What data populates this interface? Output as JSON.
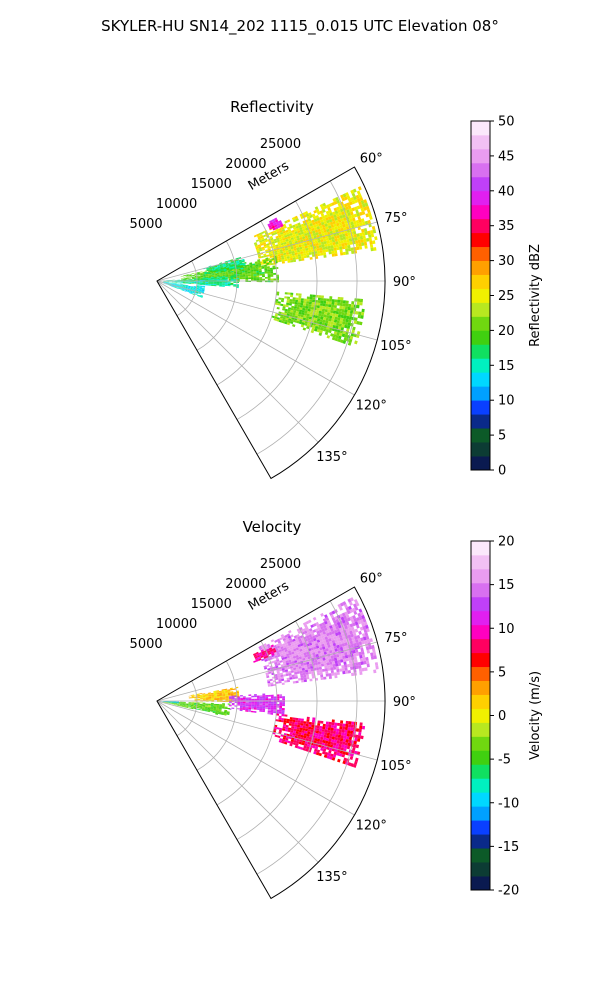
{
  "figure": {
    "title": "SKYLER-HU  SN14_202  1115_0.015 UTC Elevation 08°"
  },
  "chart_data": [
    {
      "type": "heatmap",
      "subtype": "polar-sector",
      "title": "Reflectivity",
      "radial_axis_label": "Meters",
      "radial_ticks": [
        5000,
        10000,
        15000,
        20000,
        25000
      ],
      "radial_tick_labels": [
        "5000",
        "10000",
        "15000",
        "20000",
        "25000"
      ],
      "radial_range": [
        0,
        28500
      ],
      "angular_range_deg": [
        60,
        150
      ],
      "angular_ticks_deg": [
        60,
        75,
        90,
        105,
        120,
        135
      ],
      "angular_tick_labels": [
        "60°",
        "75°",
        "90°",
        "105°",
        "120°",
        "135°"
      ],
      "grid": true,
      "colorbar": {
        "label": "Reflectivity dBZ",
        "range": [
          0,
          50
        ],
        "ticks": [
          0,
          5,
          10,
          15,
          20,
          25,
          30,
          35,
          40,
          45,
          50
        ],
        "tick_labels": [
          "0",
          "5",
          "10",
          "15",
          "20",
          "25",
          "30",
          "35",
          "40",
          "45",
          "50"
        ],
        "colors": [
          "#0a1a50",
          "#0c3c34",
          "#0c5a28",
          "#0a2a8a",
          "#0a40ff",
          "#00a0ff",
          "#00d8ff",
          "#00f0c0",
          "#10e060",
          "#40d010",
          "#70d810",
          "#b8e820",
          "#f0f000",
          "#ffd000",
          "#ffa000",
          "#ff6000",
          "#ff0000",
          "#ff0060",
          "#ff00c0",
          "#e020f0",
          "#c040f8",
          "#d870f0",
          "#ea9cf0",
          "#f2c0f4",
          "#fbe8fb"
        ]
      },
      "echo_regions": [
        {
          "az": [
            65,
            82
          ],
          "r": [
            13000,
            28000
          ],
          "value": 25
        },
        {
          "az": [
            62,
            66
          ],
          "r": [
            15500,
            17000
          ],
          "value": 38
        },
        {
          "az": [
            78,
            90
          ],
          "r": [
            3000,
            15000
          ],
          "value": 20
        },
        {
          "az": [
            74,
            82
          ],
          "r": [
            6000,
            11000
          ],
          "value": 17
        },
        {
          "az": [
            86,
            95
          ],
          "r": [
            800,
            10000
          ],
          "value": 16
        },
        {
          "az": [
            95,
            108
          ],
          "r": [
            15000,
            26000
          ],
          "value": 21
        },
        {
          "az": [
            96,
            110
          ],
          "r": [
            800,
            6000
          ],
          "value": 14
        }
      ]
    },
    {
      "type": "heatmap",
      "subtype": "polar-sector",
      "title": "Velocity",
      "radial_axis_label": "Meters",
      "radial_ticks": [
        5000,
        10000,
        15000,
        20000,
        25000
      ],
      "radial_tick_labels": [
        "5000",
        "10000",
        "15000",
        "20000",
        "25000"
      ],
      "radial_range": [
        0,
        28500
      ],
      "angular_range_deg": [
        60,
        150
      ],
      "angular_ticks_deg": [
        60,
        75,
        90,
        105,
        120,
        135
      ],
      "angular_tick_labels": [
        "60°",
        "75°",
        "90°",
        "105°",
        "120°",
        "135°"
      ],
      "grid": true,
      "colorbar": {
        "label": "Velocity (m/s)",
        "range": [
          -20,
          20
        ],
        "ticks": [
          -20,
          -15,
          -10,
          -5,
          0,
          5,
          10,
          15,
          20
        ],
        "tick_labels": [
          "-20",
          "-15",
          "-10",
          "-5",
          "0",
          "5",
          "10",
          "15",
          "20"
        ],
        "colors": [
          "#0a1a50",
          "#0c3c34",
          "#0c5a28",
          "#0a2a8a",
          "#0a40ff",
          "#00a0ff",
          "#00d8ff",
          "#00f0c0",
          "#10e060",
          "#40d010",
          "#70d810",
          "#b8e820",
          "#f0f000",
          "#ffd000",
          "#ffa000",
          "#ff6000",
          "#ff0000",
          "#ff0060",
          "#ff00c0",
          "#e020f0",
          "#c040f8",
          "#d870f0",
          "#ea9cf0",
          "#f2c0f4",
          "#fbe8fb"
        ]
      },
      "echo_regions": [
        {
          "az": [
            62,
            82
          ],
          "r": [
            14000,
            28000
          ],
          "value": 15
        },
        {
          "az": [
            64,
            68
          ],
          "r": [
            13000,
            16000
          ],
          "value": 9
        },
        {
          "az": [
            80,
            90
          ],
          "r": [
            4000,
            10000
          ],
          "value": 2
        },
        {
          "az": [
            86,
            96
          ],
          "r": [
            9000,
            16000
          ],
          "value": 12
        },
        {
          "az": [
            92,
            102
          ],
          "r": [
            800,
            9000
          ],
          "value": -4
        },
        {
          "az": [
            96,
            108
          ],
          "r": [
            15000,
            26000
          ],
          "value": 8
        },
        {
          "az": [
            90,
            96
          ],
          "r": [
            300,
            2500
          ],
          "value": -10
        }
      ]
    }
  ]
}
